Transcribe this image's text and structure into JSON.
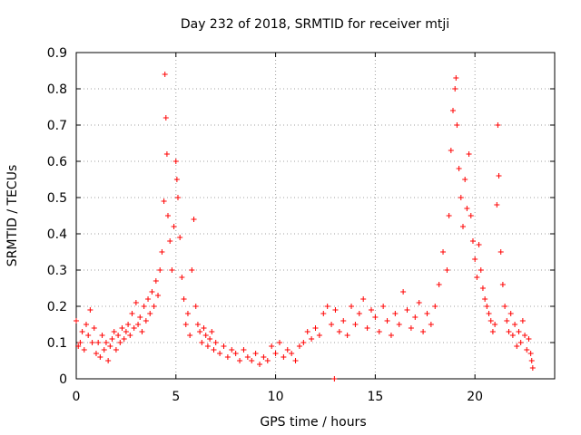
{
  "chart_data": {
    "type": "scatter",
    "title": "Day 232 of 2018, SRMTID for receiver mtji",
    "xlabel": "GPS time / hours",
    "ylabel": "SRMTID / TECUs",
    "xlim": [
      0,
      24
    ],
    "ylim": [
      0,
      0.9
    ],
    "xticks": [
      0,
      5,
      10,
      15,
      20
    ],
    "xtick_labels": [
      "0",
      "5",
      "10",
      "15",
      "20"
    ],
    "yticks": [
      0,
      0.1,
      0.2,
      0.3,
      0.4,
      0.5,
      0.6,
      0.7,
      0.8,
      0.9
    ],
    "ytick_labels": [
      "0",
      "0.1",
      "0.2",
      "0.3",
      "0.4",
      "0.5",
      "0.6",
      "0.7",
      "0.8",
      "0.9"
    ],
    "grid": true,
    "marker": "+",
    "color": "#ff0000",
    "series": [
      {
        "name": "SRMTID",
        "x": [
          0.0,
          0.1,
          0.2,
          0.3,
          0.4,
          0.5,
          0.6,
          0.7,
          0.8,
          0.9,
          1.0,
          1.1,
          1.2,
          1.3,
          1.4,
          1.5,
          1.6,
          1.7,
          1.8,
          1.9,
          2.0,
          2.1,
          2.2,
          2.3,
          2.4,
          2.5,
          2.6,
          2.7,
          2.8,
          2.9,
          3.0,
          3.1,
          3.2,
          3.3,
          3.4,
          3.5,
          3.6,
          3.7,
          3.8,
          3.9,
          4.0,
          4.1,
          4.2,
          4.3,
          4.4,
          4.45,
          4.5,
          4.55,
          4.6,
          4.7,
          4.8,
          4.9,
          5.0,
          5.05,
          5.1,
          5.2,
          5.3,
          5.4,
          5.5,
          5.6,
          5.7,
          5.8,
          5.9,
          6.0,
          6.1,
          6.2,
          6.3,
          6.4,
          6.5,
          6.6,
          6.7,
          6.8,
          6.9,
          7.0,
          7.2,
          7.4,
          7.6,
          7.8,
          8.0,
          8.2,
          8.4,
          8.6,
          8.8,
          9.0,
          9.2,
          9.4,
          9.6,
          9.8,
          10.0,
          10.2,
          10.4,
          10.6,
          10.8,
          11.0,
          11.2,
          11.4,
          11.6,
          11.8,
          12.0,
          12.2,
          12.4,
          12.6,
          12.8,
          12.95,
          13.0,
          13.2,
          13.4,
          13.6,
          13.8,
          14.0,
          14.2,
          14.4,
          14.6,
          14.8,
          15.0,
          15.2,
          15.4,
          15.6,
          15.8,
          16.0,
          16.2,
          16.4,
          16.6,
          16.8,
          17.0,
          17.2,
          17.4,
          17.6,
          17.8,
          18.0,
          18.2,
          18.4,
          18.6,
          18.7,
          18.8,
          18.9,
          19.0,
          19.05,
          19.1,
          19.2,
          19.3,
          19.4,
          19.5,
          19.6,
          19.7,
          19.8,
          19.9,
          20.0,
          20.1,
          20.2,
          20.3,
          20.4,
          20.5,
          20.6,
          20.7,
          20.8,
          20.9,
          21.0,
          21.1,
          21.15,
          21.2,
          21.3,
          21.4,
          21.5,
          21.6,
          21.7,
          21.8,
          21.9,
          22.0,
          22.1,
          22.2,
          22.3,
          22.4,
          22.5,
          22.6,
          22.7,
          22.8,
          22.85,
          22.9
        ],
        "y": [
          0.16,
          0.09,
          0.1,
          0.13,
          0.08,
          0.15,
          0.12,
          0.19,
          0.1,
          0.14,
          0.07,
          0.1,
          0.06,
          0.12,
          0.08,
          0.1,
          0.05,
          0.09,
          0.11,
          0.13,
          0.08,
          0.12,
          0.1,
          0.14,
          0.11,
          0.13,
          0.15,
          0.12,
          0.18,
          0.14,
          0.21,
          0.15,
          0.17,
          0.13,
          0.2,
          0.16,
          0.22,
          0.18,
          0.24,
          0.2,
          0.27,
          0.23,
          0.3,
          0.35,
          0.49,
          0.84,
          0.72,
          0.62,
          0.45,
          0.38,
          0.3,
          0.42,
          0.6,
          0.55,
          0.5,
          0.39,
          0.28,
          0.22,
          0.15,
          0.18,
          0.12,
          0.3,
          0.44,
          0.2,
          0.15,
          0.13,
          0.1,
          0.14,
          0.12,
          0.09,
          0.11,
          0.13,
          0.08,
          0.1,
          0.07,
          0.09,
          0.06,
          0.08,
          0.07,
          0.05,
          0.08,
          0.06,
          0.05,
          0.07,
          0.04,
          0.06,
          0.05,
          0.09,
          0.07,
          0.1,
          0.06,
          0.08,
          0.07,
          0.05,
          0.09,
          0.1,
          0.13,
          0.11,
          0.14,
          0.12,
          0.18,
          0.2,
          0.15,
          0.0,
          0.19,
          0.13,
          0.16,
          0.12,
          0.2,
          0.15,
          0.18,
          0.22,
          0.14,
          0.19,
          0.17,
          0.13,
          0.2,
          0.16,
          0.12,
          0.18,
          0.15,
          0.24,
          0.19,
          0.14,
          0.17,
          0.21,
          0.13,
          0.18,
          0.15,
          0.2,
          0.26,
          0.35,
          0.3,
          0.45,
          0.63,
          0.74,
          0.8,
          0.83,
          0.7,
          0.58,
          0.5,
          0.42,
          0.55,
          0.47,
          0.62,
          0.45,
          0.38,
          0.33,
          0.28,
          0.37,
          0.3,
          0.25,
          0.22,
          0.2,
          0.18,
          0.16,
          0.13,
          0.15,
          0.48,
          0.7,
          0.56,
          0.35,
          0.26,
          0.2,
          0.16,
          0.13,
          0.18,
          0.12,
          0.15,
          0.09,
          0.13,
          0.1,
          0.16,
          0.12,
          0.08,
          0.11,
          0.07,
          0.05,
          0.03
        ]
      }
    ]
  }
}
